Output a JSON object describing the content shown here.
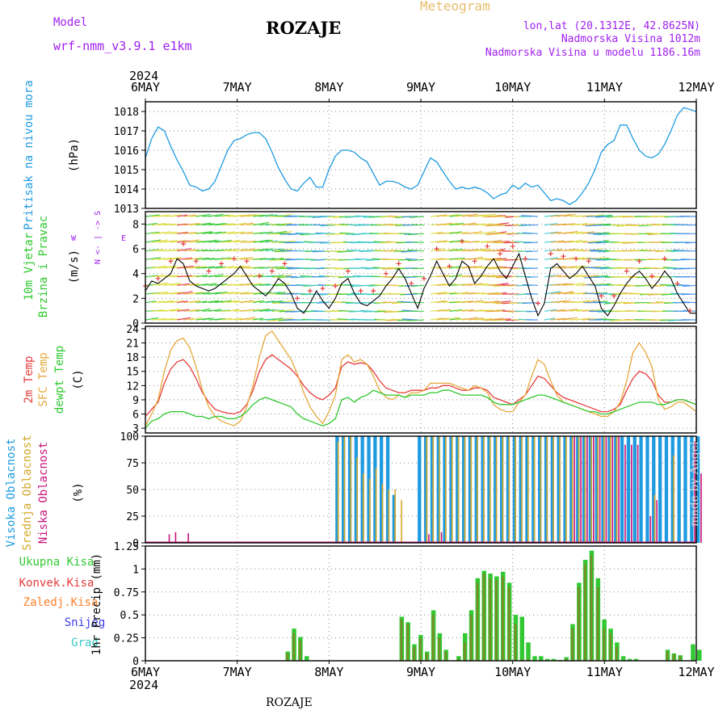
{
  "header": {
    "model_label": "Model",
    "model_name": "wrf-nmm_v3.9.1  e1km",
    "title": "ROZAJE",
    "meteogram_label": "Meteogram",
    "lonlat": "lon,lat (20.1312E, 42.8625N)",
    "elevation": "Nadmorska Visina 1012m",
    "model_elevation": "Nadmorska Visina u modelu 1186.16m",
    "footer": "ROZAJE",
    "watermark": "made by Angel"
  },
  "colors": {
    "pressure": "#1e9be0",
    "temp2m": "#e63c3c",
    "sfc_temp": "#e6a83c",
    "dewpt": "#2ec82e",
    "high_cloud": "#1e9be0",
    "mid_cloud": "#d4a828",
    "low_cloud": "#c8147a",
    "total_precip": "#32c832",
    "conv_precip": "#e63c3c",
    "frozen_precip": "#ff7f2a",
    "snow": "#3c3ce6",
    "hail": "#3cc8c8",
    "label_purple": "#a020f0"
  },
  "chart_data": [
    {
      "type": "line",
      "name": "pressure",
      "ylabel_name": "Pritisak na nivou mora",
      "ylabel_unit": "(hPa)",
      "year": "2024",
      "x_ticks": [
        "6MAY",
        "7MAY",
        "8MAY",
        "9MAY",
        "10MAY",
        "11MAY",
        "12MAY"
      ],
      "ylim": [
        1013,
        1018.5
      ],
      "y_ticks": [
        1013,
        1014,
        1015,
        1016,
        1017,
        1018
      ],
      "values": [
        1015.6,
        1016.6,
        1017.2,
        1017.0,
        1016.2,
        1015.5,
        1014.9,
        1014.2,
        1014.1,
        1013.9,
        1014.0,
        1014.4,
        1015.2,
        1016.0,
        1016.5,
        1016.6,
        1016.8,
        1016.9,
        1016.9,
        1016.6,
        1015.9,
        1015.1,
        1014.5,
        1014.0,
        1013.9,
        1014.3,
        1014.6,
        1014.1,
        1014.1,
        1015.0,
        1015.7,
        1016.0,
        1016.0,
        1015.9,
        1015.6,
        1015.4,
        1014.8,
        1014.2,
        1014.4,
        1014.4,
        1014.3,
        1014.1,
        1014.0,
        1014.2,
        1014.9,
        1015.6,
        1015.4,
        1014.9,
        1014.4,
        1014.0,
        1014.1,
        1014.0,
        1014.1,
        1014.0,
        1013.8,
        1013.5,
        1013.7,
        1013.8,
        1014.2,
        1014.0,
        1014.3,
        1014.1,
        1014.2,
        1013.8,
        1013.4,
        1013.5,
        1013.4,
        1013.2,
        1013.4,
        1013.8,
        1014.3,
        1015.0,
        1015.9,
        1016.3,
        1016.5,
        1017.3,
        1017.3,
        1016.6,
        1016.0,
        1015.7,
        1015.6,
        1015.8,
        1016.3,
        1017.0,
        1017.8,
        1018.2,
        1018.1,
        1018.0
      ]
    },
    {
      "type": "scatter",
      "name": "wind",
      "ylabel_line1": "10m Vjetar",
      "ylabel_line2": "Brzina i Pravac",
      "ylabel_unit": "(m/s)",
      "compass": [
        "N",
        "<-",
        "|",
        "->",
        "S"
      ],
      "compass_w": "W",
      "compass_e": "E",
      "ylim": [
        0,
        9
      ],
      "y_ticks": [
        0,
        2,
        4,
        6,
        8
      ],
      "speed": [
        2.6,
        3.4,
        3.2,
        3.6,
        4.0,
        5.2,
        4.8,
        3.4,
        3.0,
        2.8,
        2.6,
        2.8,
        3.2,
        3.6,
        4.0,
        4.6,
        3.8,
        3.0,
        2.6,
        2.2,
        2.8,
        3.6,
        3.2,
        2.4,
        1.2,
        0.8,
        1.6,
        2.6,
        1.8,
        1.2,
        2.0,
        3.2,
        3.6,
        2.4,
        1.6,
        1.4,
        1.8,
        2.2,
        3.0,
        3.6,
        4.4,
        3.6,
        2.4,
        1.2,
        2.8,
        3.8,
        5.0,
        4.0,
        3.0,
        3.6,
        5.0,
        4.6,
        3.2,
        3.8,
        4.6,
        5.2,
        4.2,
        3.6,
        4.6,
        5.6,
        3.8,
        2.0,
        0.6,
        1.6,
        4.4,
        4.8,
        4.2,
        3.6,
        4.0,
        4.6,
        3.8,
        3.0,
        1.2,
        0.6,
        1.4,
        2.4,
        3.2,
        3.8,
        4.2,
        3.6,
        2.8,
        3.4,
        4.2,
        3.6,
        2.4,
        1.6,
        0.8,
        0.8
      ],
      "gust": [
        3.0,
        3.4,
        3.6,
        3.8,
        5.0,
        6.2,
        6.4,
        6.0,
        5.0,
        4.6,
        4.2,
        4.0,
        4.8,
        5.0,
        5.2,
        5.6,
        5.0,
        4.4,
        3.8,
        3.2,
        4.2,
        5.0,
        4.8,
        3.6,
        2.0,
        1.6,
        2.6,
        3.4,
        2.8,
        2.4,
        3.0,
        4.0,
        4.2,
        3.4,
        2.6,
        2.0,
        2.6,
        3.0,
        4.0,
        4.2,
        4.8,
        4.4,
        3.2,
        2.0,
        3.6,
        4.8,
        6.0,
        5.4,
        4.6,
        5.0,
        6.6,
        6.0,
        5.0,
        5.6,
        6.2,
        6.6,
        5.6,
        5.0,
        6.2,
        6.8,
        5.2,
        3.2,
        1.6,
        2.6,
        5.6,
        6.2,
        5.4,
        4.8,
        5.2,
        5.8,
        5.0,
        4.2,
        2.2,
        1.4,
        2.2,
        3.4,
        4.2,
        4.8,
        5.0,
        4.6,
        3.8,
        4.4,
        5.2,
        4.6,
        3.2,
        2.0,
        1.0,
        0.8
      ]
    },
    {
      "type": "line",
      "name": "temperature",
      "ylabel_2m": "2m Temp",
      "ylabel_sfc": "SFC Temp",
      "ylabel_dew": "dewpt Temp",
      "ylabel_unit": "(C)",
      "ylim": [
        2,
        24.5
      ],
      "y_ticks": [
        3,
        6,
        9,
        12,
        15,
        18,
        21,
        24
      ],
      "series": [
        {
          "name": "2m Temp",
          "values": [
            5.5,
            7.0,
            8.5,
            12.5,
            15.5,
            17.0,
            17.5,
            16.0,
            13.5,
            10.5,
            8.5,
            7.0,
            6.5,
            6.2,
            6.0,
            6.5,
            8.0,
            11.0,
            15.0,
            17.5,
            18.5,
            17.5,
            16.5,
            15.5,
            14.0,
            12.0,
            10.5,
            9.5,
            9.0,
            10.0,
            11.5,
            16.0,
            17.0,
            16.5,
            16.8,
            16.5,
            15.0,
            13.0,
            11.5,
            11.0,
            10.5,
            10.5,
            11.0,
            11.0,
            11.0,
            11.5,
            11.5,
            12.0,
            12.0,
            11.5,
            11.0,
            11.0,
            11.5,
            11.5,
            11.0,
            9.5,
            9.0,
            8.5,
            8.0,
            9.0,
            10.0,
            12.0,
            14.0,
            13.5,
            12.0,
            10.5,
            9.5,
            9.0,
            8.5,
            8.0,
            7.5,
            7.0,
            6.5,
            6.5,
            7.0,
            8.0,
            11.0,
            13.5,
            15.0,
            14.5,
            13.0,
            10.0,
            8.5,
            8.5,
            9.0,
            9.0,
            8.5,
            8.0
          ]
        },
        {
          "name": "SFC Temp",
          "values": [
            3.5,
            6.0,
            9.0,
            15.0,
            19.5,
            21.5,
            22.0,
            20.0,
            16.0,
            11.0,
            7.5,
            5.5,
            4.5,
            4.0,
            3.5,
            4.5,
            7.5,
            12.0,
            18.0,
            22.5,
            23.5,
            21.5,
            19.5,
            17.5,
            14.5,
            10.5,
            7.5,
            5.5,
            4.0,
            6.5,
            10.0,
            17.5,
            18.5,
            17.0,
            17.5,
            16.5,
            14.0,
            11.0,
            9.5,
            9.0,
            10.0,
            9.5,
            10.5,
            10.5,
            11.0,
            12.5,
            12.5,
            12.5,
            12.5,
            12.0,
            11.5,
            11.0,
            12.0,
            11.5,
            10.5,
            8.0,
            7.0,
            6.5,
            6.5,
            8.5,
            10.0,
            14.0,
            17.5,
            16.5,
            13.0,
            10.0,
            8.5,
            8.0,
            7.5,
            7.0,
            6.5,
            6.0,
            5.5,
            5.5,
            6.5,
            8.5,
            13.0,
            19.0,
            21.0,
            19.0,
            16.0,
            9.0,
            7.0,
            7.5,
            8.5,
            8.5,
            7.5,
            6.5
          ]
        },
        {
          "name": "dewpt Temp",
          "values": [
            3.0,
            4.5,
            5.0,
            6.0,
            6.5,
            6.5,
            6.5,
            6.0,
            5.5,
            5.5,
            5.0,
            5.5,
            5.5,
            5.0,
            5.0,
            5.5,
            6.5,
            8.0,
            9.0,
            9.5,
            9.0,
            8.5,
            8.0,
            7.5,
            6.0,
            5.0,
            4.5,
            4.0,
            3.5,
            4.0,
            5.0,
            9.0,
            9.5,
            8.5,
            9.5,
            10.0,
            11.0,
            10.5,
            10.0,
            10.0,
            10.0,
            9.5,
            10.0,
            10.0,
            10.0,
            10.5,
            10.5,
            11.0,
            11.0,
            10.5,
            10.0,
            10.0,
            10.0,
            10.0,
            9.5,
            8.5,
            8.0,
            8.0,
            8.0,
            8.5,
            9.0,
            9.5,
            10.0,
            10.0,
            9.5,
            9.0,
            8.5,
            8.0,
            7.5,
            7.0,
            6.5,
            6.5,
            6.0,
            6.0,
            6.5,
            7.0,
            7.5,
            8.0,
            8.5,
            8.5,
            8.5,
            8.0,
            8.0,
            8.5,
            9.0,
            9.0,
            8.5,
            8.0
          ]
        }
      ]
    },
    {
      "type": "bar",
      "name": "clouds",
      "ylabel_high": "Visoka Oblacnost",
      "ylabel_mid": "Srednja Oblacnost",
      "ylabel_low": "Niska Oblacnost",
      "ylabel_unit": "(%)",
      "ylim": [
        0,
        100
      ],
      "y_ticks": [
        0,
        25,
        50,
        75,
        100
      ],
      "series": [
        {
          "name": "Visoka Oblacnost",
          "values": [
            0,
            0,
            0,
            0,
            0,
            0,
            0,
            0,
            0,
            0,
            0,
            0,
            0,
            0,
            0,
            0,
            0,
            0,
            0,
            0,
            0,
            0,
            0,
            0,
            0,
            0,
            0,
            0,
            0,
            0,
            100,
            100,
            100,
            100,
            100,
            100,
            100,
            100,
            100,
            45,
            0,
            0,
            0,
            100,
            100,
            100,
            100,
            100,
            100,
            100,
            100,
            100,
            100,
            100,
            100,
            100,
            100,
            100,
            100,
            100,
            100,
            100,
            100,
            100,
            100,
            100,
            100,
            100,
            100,
            100,
            100,
            100,
            100,
            100,
            100,
            100,
            100,
            100,
            100,
            100,
            100,
            100,
            100,
            100,
            100,
            100,
            100,
            100
          ]
        },
        {
          "name": "Srednja Oblacnost",
          "values": [
            0,
            0,
            0,
            0,
            0,
            0,
            0,
            0,
            0,
            0,
            0,
            0,
            0,
            0,
            0,
            0,
            0,
            0,
            0,
            0,
            0,
            0,
            0,
            0,
            0,
            0,
            0,
            0,
            0,
            0,
            95,
            100,
            100,
            80,
            65,
            60,
            70,
            55,
            50,
            50,
            40,
            0,
            0,
            0,
            100,
            100,
            100,
            100,
            100,
            100,
            100,
            100,
            100,
            100,
            100,
            100,
            100,
            100,
            100,
            100,
            100,
            100,
            100,
            100,
            100,
            100,
            100,
            100,
            100,
            100,
            100,
            100,
            100,
            100,
            100,
            0,
            0,
            0,
            0,
            0,
            45,
            0,
            0,
            82,
            0,
            0,
            0,
            0
          ]
        },
        {
          "name": "Niska Oblacnost",
          "values": [
            0,
            0,
            0,
            8,
            10,
            0,
            9,
            0,
            0,
            0,
            0,
            0,
            0,
            0,
            0,
            0,
            0,
            0,
            0,
            0,
            0,
            0,
            0,
            0,
            0,
            0,
            0,
            0,
            0,
            0,
            0,
            0,
            0,
            0,
            0,
            0,
            0,
            0,
            0,
            0,
            0,
            0,
            0,
            0,
            8,
            0,
            10,
            0,
            0,
            0,
            0,
            0,
            0,
            0,
            0,
            0,
            0,
            0,
            0,
            0,
            0,
            0,
            0,
            0,
            0,
            0,
            0,
            100,
            100,
            100,
            100,
            100,
            100,
            100,
            100,
            92,
            92,
            92,
            0,
            25,
            40,
            0,
            0,
            0,
            0,
            0,
            95,
            65
          ]
        }
      ]
    },
    {
      "type": "bar",
      "name": "precip",
      "legend": [
        "Ukupna Kisa",
        "Konvek.Kisa",
        "Zaledj.Kisa",
        "Snijeg",
        "Grad"
      ],
      "ylabel": "1hr Precip (mm)",
      "ylim": [
        0,
        1.25
      ],
      "y_ticks": [
        0,
        0.25,
        0.5,
        0.75,
        1,
        1.25
      ],
      "y_tick_labels": [
        "0",
        "0.25",
        "0.5",
        "0.75",
        "1",
        "1.25"
      ],
      "series": [
        {
          "name": "Ukupna Kisa",
          "values": [
            0,
            0,
            0,
            0,
            0,
            0,
            0,
            0,
            0,
            0,
            0,
            0,
            0,
            0,
            0,
            0,
            0,
            0,
            0,
            0,
            0,
            0,
            0.1,
            0.35,
            0.26,
            0.05,
            0,
            0,
            0,
            0,
            0,
            0,
            0,
            0,
            0,
            0,
            0,
            0,
            0,
            0,
            0.48,
            0.42,
            0.18,
            0.28,
            0.1,
            0.55,
            0.3,
            0.12,
            0,
            0.05,
            0.3,
            0.55,
            0.9,
            0.98,
            0.95,
            0.92,
            0.97,
            0.85,
            0.5,
            0.48,
            0.2,
            0.05,
            0.05,
            0.02,
            0.02,
            0.01,
            0.04,
            0.4,
            0.85,
            1.1,
            1.2,
            0.9,
            0.45,
            0.35,
            0.2,
            0.05,
            0.02,
            0.02,
            0,
            0,
            0,
            0,
            0.12,
            0.08,
            0.06,
            0,
            0.18,
            0.12
          ]
        },
        {
          "name": "Konvek.Kisa",
          "values": [
            0,
            0,
            0,
            0,
            0,
            0,
            0,
            0,
            0,
            0,
            0,
            0,
            0,
            0,
            0,
            0,
            0,
            0,
            0,
            0,
            0,
            0,
            0.08,
            0.3,
            0.22,
            0,
            0,
            0,
            0,
            0,
            0,
            0,
            0,
            0,
            0,
            0,
            0,
            0,
            0,
            0,
            0.45,
            0.4,
            0.15,
            0.25,
            0.08,
            0.5,
            0.25,
            0.1,
            0,
            0.02,
            0.2,
            0.5,
            0.85,
            0.95,
            0.9,
            0.88,
            0.92,
            0.8,
            0.4,
            0.02,
            0.02,
            0,
            0,
            0,
            0,
            0,
            0.02,
            0.35,
            0.8,
            1.05,
            1.15,
            0.8,
            0.35,
            0.3,
            0.15,
            0,
            0,
            0,
            0,
            0,
            0,
            0,
            0.1,
            0.07,
            0.05,
            0,
            0,
            0
          ]
        }
      ]
    }
  ]
}
